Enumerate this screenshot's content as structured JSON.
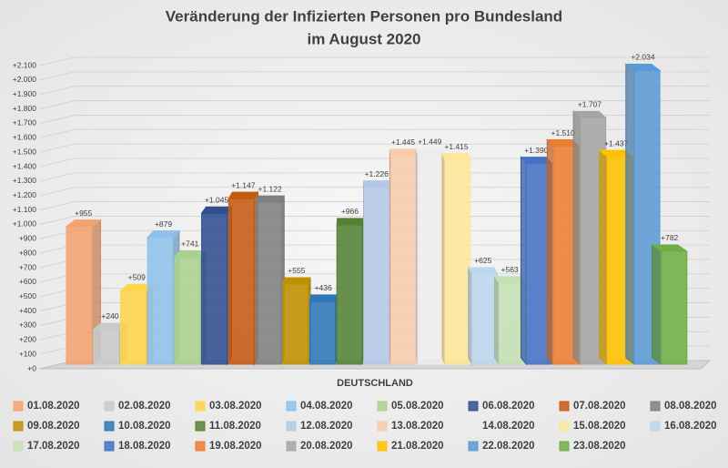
{
  "chart_data": {
    "type": "bar3d",
    "title": [
      "Veränderung der Infizierten Personen pro Bundesland",
      "im August 2020"
    ],
    "categories": [
      "DEUTSCHLAND"
    ],
    "ylim": [
      0,
      2100
    ],
    "yticks": [
      {
        "value": 0,
        "label": "+0"
      },
      {
        "value": 100,
        "label": "+100"
      },
      {
        "value": 200,
        "label": "+200"
      },
      {
        "value": 300,
        "label": "+300"
      },
      {
        "value": 400,
        "label": "+400"
      },
      {
        "value": 500,
        "label": "+500"
      },
      {
        "value": 600,
        "label": "+600"
      },
      {
        "value": 700,
        "label": "+700"
      },
      {
        "value": 800,
        "label": "+800"
      },
      {
        "value": 900,
        "label": "+900"
      },
      {
        "value": 1000,
        "label": "+1.000"
      },
      {
        "value": 1100,
        "label": "+1.100"
      },
      {
        "value": 1200,
        "label": "+1.200"
      },
      {
        "value": 1300,
        "label": "+1.300"
      },
      {
        "value": 1400,
        "label": "+1.400"
      },
      {
        "value": 1500,
        "label": "+1.500"
      },
      {
        "value": 1600,
        "label": "+1.600"
      },
      {
        "value": 1700,
        "label": "+1.700"
      },
      {
        "value": 1800,
        "label": "+1.800"
      },
      {
        "value": 1900,
        "label": "+1.900"
      },
      {
        "value": 2000,
        "label": "+2.000"
      },
      {
        "value": 2100,
        "label": "+2.100"
      }
    ],
    "grid": true,
    "legend": "bottom",
    "series": [
      {
        "name": "01.08.2020",
        "color": "#f4a26f",
        "values": [
          955
        ],
        "value_labels": [
          "+955"
        ]
      },
      {
        "name": "02.08.2020",
        "color": "#c9c9c9",
        "values": [
          240
        ],
        "value_labels": [
          "+240"
        ]
      },
      {
        "name": "03.08.2020",
        "color": "#ffd54a",
        "values": [
          509
        ],
        "value_labels": [
          "+509"
        ]
      },
      {
        "name": "04.08.2020",
        "color": "#8fc1ea",
        "values": [
          879
        ],
        "value_labels": [
          "+879"
        ]
      },
      {
        "name": "05.08.2020",
        "color": "#a9d18e",
        "values": [
          741
        ],
        "value_labels": [
          "+741"
        ]
      },
      {
        "name": "06.08.2020",
        "color": "#2f4f8f",
        "values": [
          1045
        ],
        "value_labels": [
          "+1.045"
        ]
      },
      {
        "name": "07.08.2020",
        "color": "#c55a11",
        "values": [
          1147
        ],
        "value_labels": [
          "+1.147"
        ]
      },
      {
        "name": "08.08.2020",
        "color": "#7f7f7f",
        "values": [
          1122
        ],
        "value_labels": [
          "+1.122"
        ]
      },
      {
        "name": "09.08.2020",
        "color": "#bf9000",
        "values": [
          555
        ],
        "value_labels": [
          "+555"
        ]
      },
      {
        "name": "10.08.2020",
        "color": "#2e75b6",
        "values": [
          436
        ],
        "value_labels": [
          "+436"
        ]
      },
      {
        "name": "11.08.2020",
        "color": "#548235",
        "values": [
          966
        ],
        "value_labels": [
          "+966"
        ]
      },
      {
        "name": "12.08.2020",
        "color": "#b4c7e7",
        "values": [
          1226
        ],
        "value_labels": [
          "+1.226"
        ]
      },
      {
        "name": "13.08.2020",
        "color": "#f8cbad",
        "values": [
          1445
        ],
        "value_labels": [
          "+1.445"
        ]
      },
      {
        "name": "14.08.2020",
        "color": "#ededed",
        "values": [
          1449
        ],
        "value_labels": [
          "+1.449"
        ]
      },
      {
        "name": "15.08.2020",
        "color": "#ffe699",
        "values": [
          1415
        ],
        "value_labels": [
          "+1.415"
        ]
      },
      {
        "name": "16.08.2020",
        "color": "#bdd7ee",
        "values": [
          625
        ],
        "value_labels": [
          "+625"
        ]
      },
      {
        "name": "17.08.2020",
        "color": "#c5e0b4",
        "values": [
          563
        ],
        "value_labels": [
          "+563"
        ]
      },
      {
        "name": "18.08.2020",
        "color": "#4472c4",
        "values": [
          1390
        ],
        "value_labels": [
          "+1.390"
        ]
      },
      {
        "name": "19.08.2020",
        "color": "#ed7d31",
        "values": [
          1510
        ],
        "value_labels": [
          "+1.510"
        ]
      },
      {
        "name": "20.08.2020",
        "color": "#a5a5a5",
        "values": [
          1707
        ],
        "value_labels": [
          "+1.707"
        ]
      },
      {
        "name": "21.08.2020",
        "color": "#ffc000",
        "values": [
          1437
        ],
        "value_labels": [
          "+1.437"
        ]
      },
      {
        "name": "22.08.2020",
        "color": "#5b9bd5",
        "values": [
          2034
        ],
        "value_labels": [
          "+2.034"
        ]
      },
      {
        "name": "23.08.2020",
        "color": "#70ad47",
        "values": [
          782
        ],
        "value_labels": [
          "+782"
        ]
      }
    ]
  }
}
